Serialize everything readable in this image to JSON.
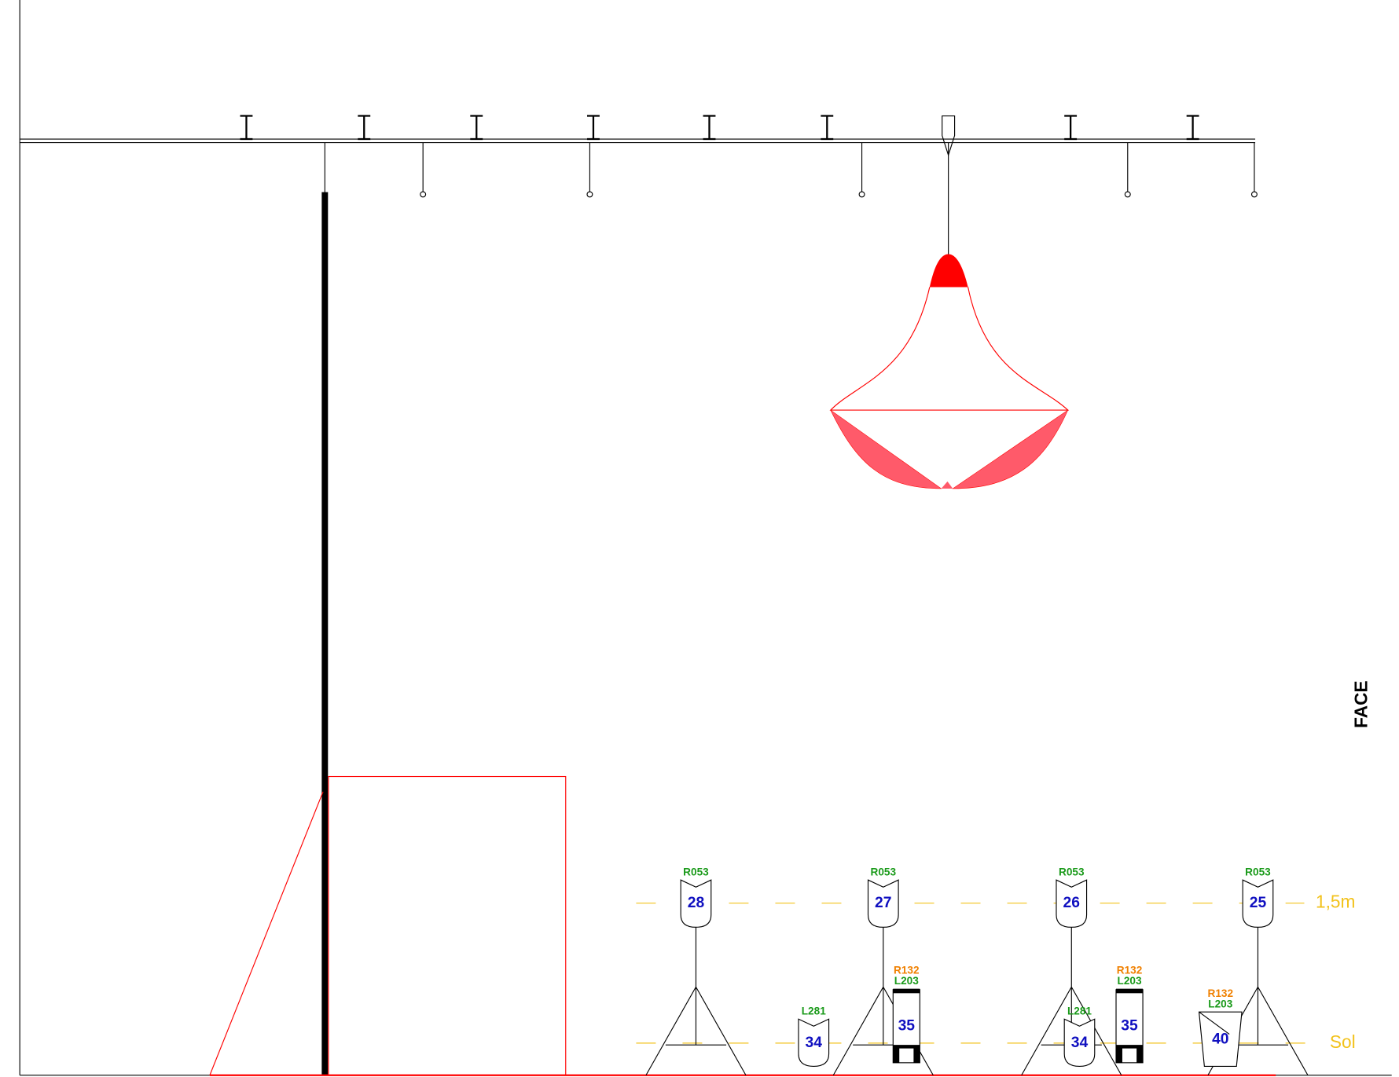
{
  "side_label": "FACE",
  "levels": {
    "high": "1,5m",
    "floor": "Sol"
  },
  "stand_fixtures": [
    {
      "number": "28",
      "gel": "R053"
    },
    {
      "number": "27",
      "gel": "R053"
    },
    {
      "number": "26",
      "gel": "R053"
    },
    {
      "number": "25",
      "gel": "R053"
    }
  ],
  "floor_fixtures": [
    {
      "number": "34",
      "gels": [
        "L281"
      ]
    },
    {
      "number": "35",
      "gels": [
        "R132",
        "L203"
      ]
    },
    {
      "number": "34",
      "gels": [
        "L281"
      ]
    },
    {
      "number": "35",
      "gels": [
        "R132",
        "L203"
      ]
    },
    {
      "number": "40",
      "gels": [
        "R132",
        "L203"
      ]
    }
  ]
}
